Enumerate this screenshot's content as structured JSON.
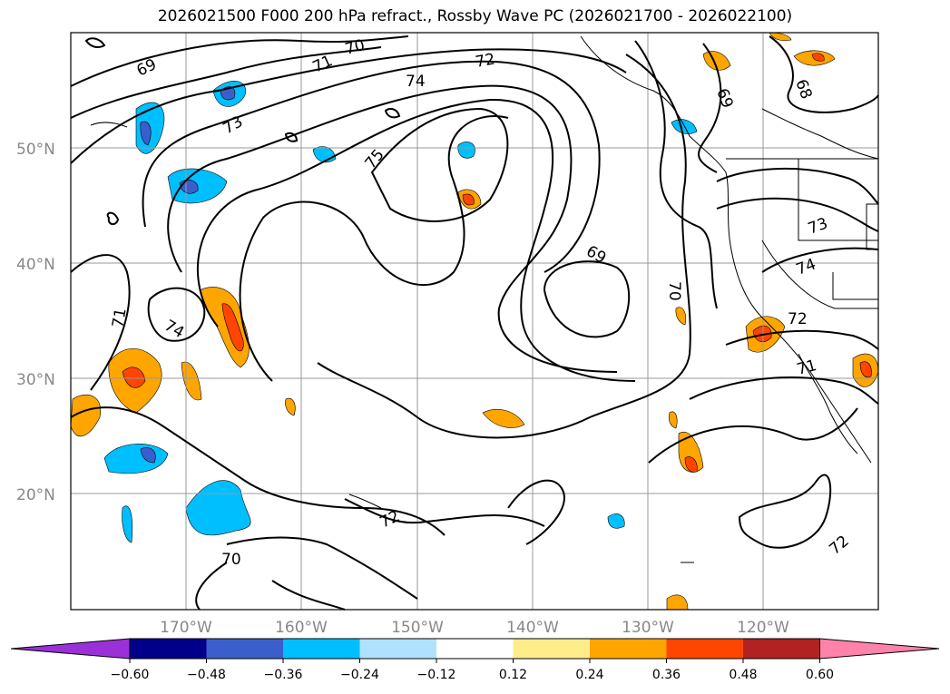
{
  "title": "2026021500 F000 200 hPa refract., Rossby Wave PC (2026021700 - 2026022100)",
  "axes": {
    "lat_labels": [
      "50°N",
      "40°N",
      "30°N",
      "20°N"
    ],
    "lon_labels": [
      "170°W",
      "160°W",
      "150°W",
      "140°W",
      "130°W",
      "120°W"
    ]
  },
  "contour_labels": [
    "69",
    "70",
    "71",
    "72",
    "74",
    "73",
    "75",
    "69",
    "68",
    "69",
    "73",
    "74",
    "70",
    "72",
    "71",
    "71",
    "74",
    "72",
    "72",
    "70"
  ],
  "colorbar": {
    "ticks": [
      "−0.60",
      "−0.48",
      "−0.36",
      "−0.24",
      "−0.12",
      "0.12",
      "0.24",
      "0.36",
      "0.48",
      "0.60"
    ],
    "colors": [
      "#9b30d9",
      "#00008b",
      "#3a5fcd",
      "#00bfff",
      "#b0e2ff",
      "#ffffff",
      "#ffec8b",
      "#ffa500",
      "#ff4500",
      "#b22222",
      "#ff82ab"
    ]
  }
}
